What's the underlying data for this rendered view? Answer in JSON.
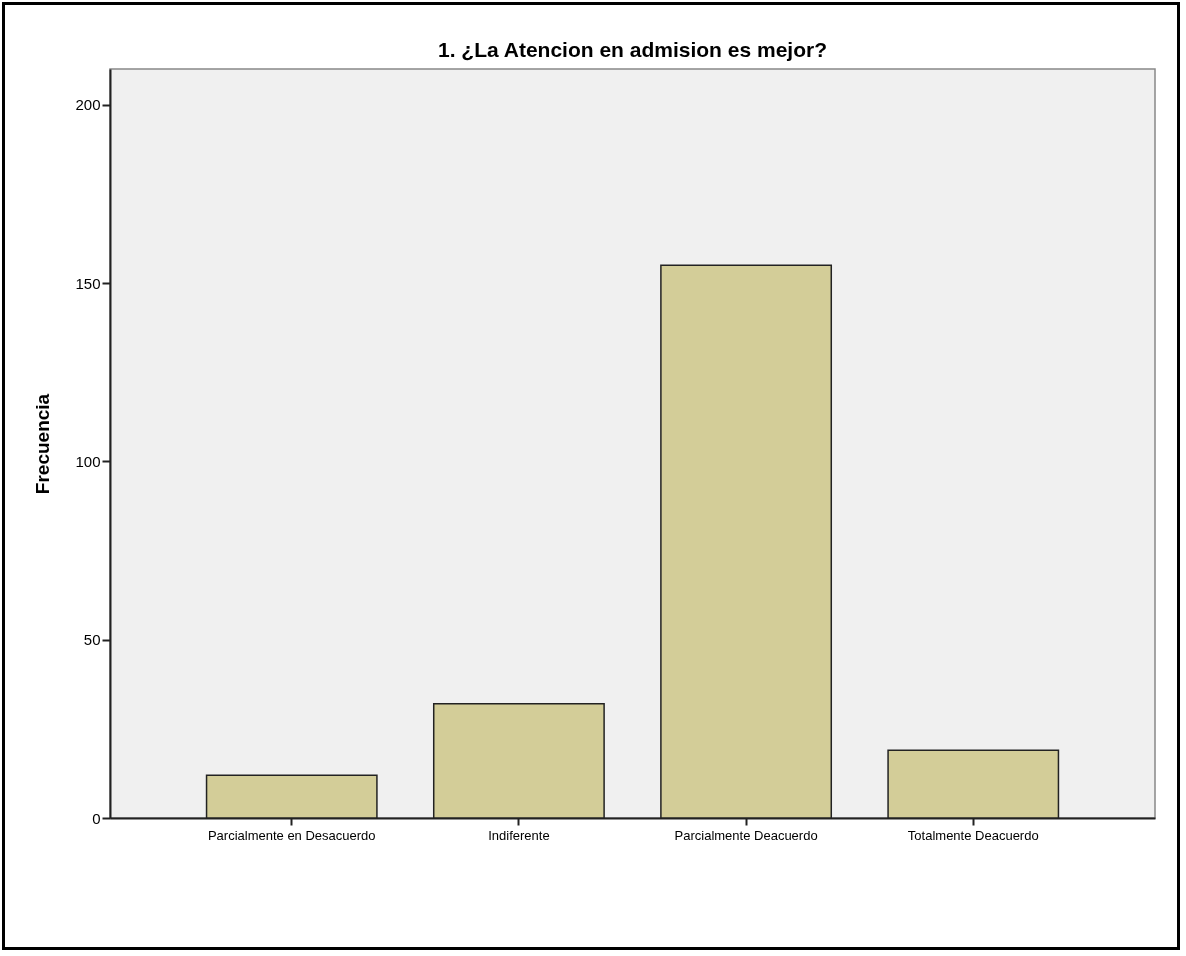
{
  "chart_data": {
    "type": "bar",
    "title": "1. ¿La Atencion en admision es mejor?",
    "ylabel": "Frecuencia",
    "categories": [
      "Parcialmente en Desacuerdo",
      "Indiferente",
      "Parcialmente Deacuerdo",
      "Totalmente Deacuerdo"
    ],
    "values": [
      12,
      32,
      155,
      19
    ],
    "color": "#d3cd98",
    "ylim": [
      0,
      210
    ],
    "yticks": [
      0,
      50,
      100,
      150,
      200
    ],
    "grid": false
  }
}
